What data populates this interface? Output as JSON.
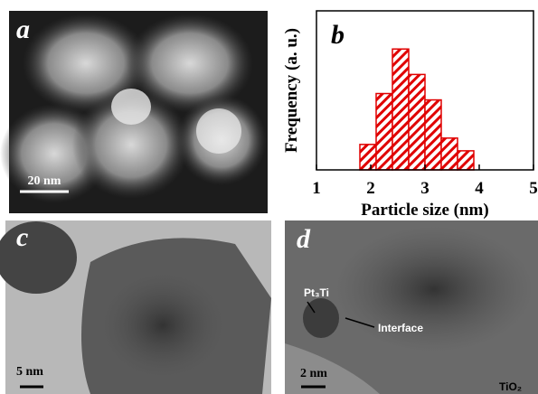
{
  "panels": {
    "a": {
      "label": "a",
      "scale_bar": "20 nm"
    },
    "c": {
      "label": "c",
      "scale_bar": "5 nm"
    },
    "d": {
      "label": "d",
      "scale_bar": "2 nm",
      "annotations": [
        "Pt₃Ti",
        "Interface",
        "TiO₂"
      ]
    }
  },
  "chart_data": {
    "type": "histogram",
    "label": "b",
    "x_label": "Particle size (nm)",
    "y_label": "Frequency (a. u.)",
    "bins": [
      1.8,
      2.1,
      2.4,
      2.7,
      3.0,
      3.3,
      3.6,
      3.9
    ],
    "values": [
      4,
      12,
      19,
      15,
      11,
      5,
      3
    ],
    "color": "#e00000",
    "xlim": [
      1,
      5
    ],
    "xticks": [
      1,
      2,
      3,
      4,
      5
    ],
    "ylim": [
      0,
      25
    ]
  }
}
